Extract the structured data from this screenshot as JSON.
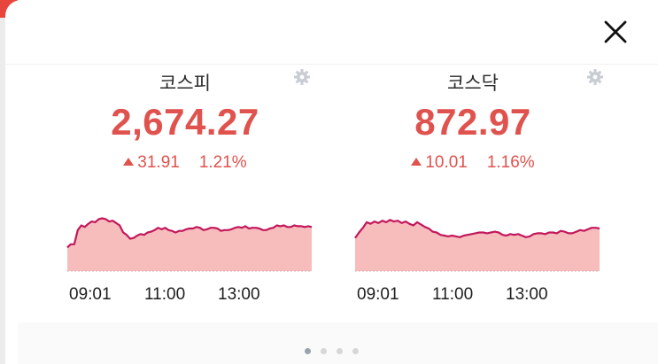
{
  "close_icon": "close-icon",
  "markets": [
    {
      "name": "코스피",
      "value": "2,674.27",
      "change": "31.91",
      "change_pct": "1.21%",
      "direction": "up",
      "color": "#e0524d",
      "icon": "gear-icon",
      "xticks": [
        "09:01",
        "11:00",
        "13:00"
      ],
      "series": [
        0.3,
        0.34,
        0.34,
        0.52,
        0.58,
        0.56,
        0.6,
        0.63,
        0.62,
        0.66,
        0.67,
        0.66,
        0.63,
        0.64,
        0.61,
        0.58,
        0.49,
        0.46,
        0.41,
        0.42,
        0.45,
        0.47,
        0.46,
        0.49,
        0.5,
        0.52,
        0.55,
        0.53,
        0.55,
        0.52,
        0.51,
        0.49,
        0.51,
        0.51,
        0.53,
        0.54,
        0.54,
        0.56,
        0.55,
        0.52,
        0.53,
        0.55,
        0.55,
        0.54,
        0.51,
        0.52,
        0.52,
        0.53,
        0.55,
        0.56,
        0.55,
        0.57,
        0.54,
        0.55,
        0.55,
        0.54,
        0.52,
        0.52,
        0.54,
        0.55,
        0.58,
        0.57,
        0.58,
        0.56,
        0.56,
        0.58,
        0.57,
        0.57,
        0.56,
        0.57,
        0.56
      ]
    },
    {
      "name": "코스닥",
      "value": "872.97",
      "change": "10.01",
      "change_pct": "1.16%",
      "direction": "up",
      "color": "#e0524d",
      "icon": "gear-icon",
      "xticks": [
        "09:01",
        "11:00",
        "13:00"
      ],
      "series": [
        0.42,
        0.49,
        0.55,
        0.62,
        0.6,
        0.63,
        0.61,
        0.64,
        0.62,
        0.65,
        0.63,
        0.64,
        0.61,
        0.63,
        0.6,
        0.58,
        0.62,
        0.59,
        0.56,
        0.54,
        0.5,
        0.49,
        0.46,
        0.45,
        0.44,
        0.45,
        0.44,
        0.43,
        0.45,
        0.46,
        0.47,
        0.48,
        0.49,
        0.49,
        0.48,
        0.49,
        0.5,
        0.49,
        0.46,
        0.45,
        0.47,
        0.46,
        0.47,
        0.45,
        0.43,
        0.44,
        0.47,
        0.48,
        0.48,
        0.47,
        0.49,
        0.49,
        0.48,
        0.51,
        0.5,
        0.48,
        0.48,
        0.5,
        0.52,
        0.51,
        0.53,
        0.55,
        0.55,
        0.54
      ]
    }
  ],
  "pager": {
    "count": 4,
    "active": 0
  }
}
